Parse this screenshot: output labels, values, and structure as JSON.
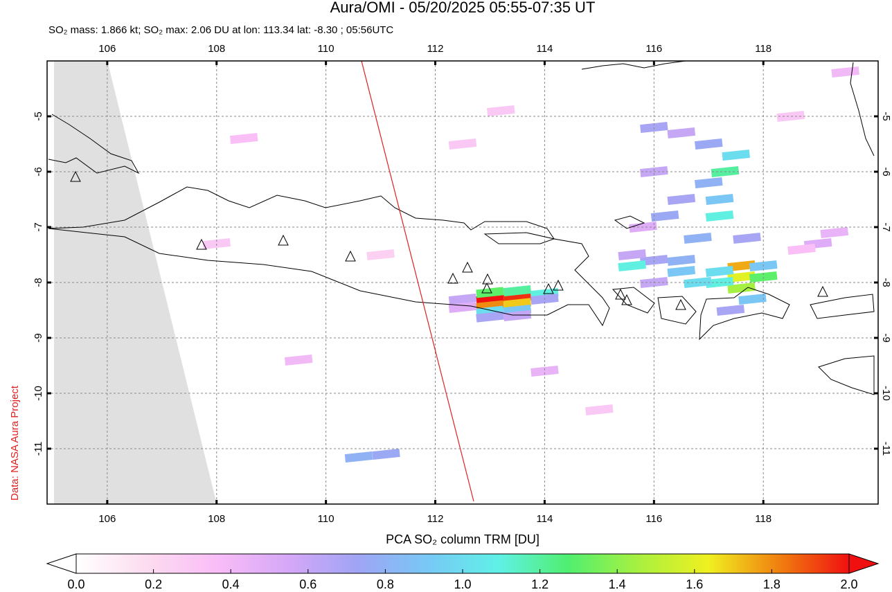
{
  "chart_data": {
    "type": "map",
    "title": "Aura/OMI - 05/20/2025 05:55-07:35 UT",
    "subtitle": "SO₂ mass: 1.866 kt; SO₂ max: 2.06 DU at lon: 113.34 lat: -8.30 ; 05:56UTC",
    "credit": "Data: NASA Aura Project",
    "xlim": [
      104.9,
      120.1
    ],
    "ylim": [
      -12,
      -4
    ],
    "xticks": [
      106,
      108,
      110,
      112,
      114,
      116,
      118
    ],
    "yticks": [
      -5,
      -6,
      -7,
      -8,
      -9,
      -10,
      -11
    ],
    "grid": true,
    "colorbar": {
      "label": "PCA SO₂ column TRM [DU]",
      "range": [
        0,
        2
      ],
      "ticks": [
        {
          "value": 0,
          "label": "0.0"
        },
        0.2,
        0.4,
        0.6,
        0.8,
        {
          "value": 1,
          "label": "1.0"
        },
        1.2,
        1.4,
        1.6,
        1.8,
        {
          "value": 2,
          "label": "2.0"
        }
      ],
      "colormap": [
        "#ffffff",
        "#fcdcf0",
        "#f9bdf7",
        "#d6a8f7",
        "#a0a4f5",
        "#78c8f5",
        "#60f0e8",
        "#50ef70",
        "#a8f040",
        "#f0f020",
        "#f08010",
        "#f01010"
      ]
    },
    "so2_pixels": {
      "lon": [
        113.0,
        113.5,
        113.0,
        113.5,
        113.0,
        113.5,
        113.0,
        113.5,
        112.5,
        112.5,
        114.0,
        114.0,
        113.0,
        113.5,
        117.6,
        117.6,
        117.6,
        117.2,
        117.2,
        118.0,
        118.0,
        117.8,
        117.4,
        116.5,
        116.5,
        116.0,
        115.6,
        115.6,
        116.0,
        116.8,
        117.2,
        117.2,
        117.3,
        117.5,
        117.0,
        116.5,
        116.0,
        116.5,
        117.0,
        116.0,
        116.2,
        116.8,
        117.7,
        115.8,
        110.6,
        111.1,
        108.5,
        112.5,
        109.5,
        114.0,
        119.0,
        119.3,
        118.7,
        108.0,
        111.0,
        113.2,
        115.0,
        118.5,
        119.5
      ],
      "lat": [
        -8.3,
        -8.27,
        -8.42,
        -8.38,
        -8.18,
        -8.15,
        -8.52,
        -8.5,
        -8.3,
        -8.45,
        -8.2,
        -8.3,
        -8.62,
        -8.6,
        -7.7,
        -7.9,
        -8.1,
        -7.8,
        -8.0,
        -7.7,
        -7.9,
        -8.3,
        -8.5,
        -7.8,
        -7.6,
        -7.6,
        -7.5,
        -7.7,
        -8.0,
        -8.0,
        -6.8,
        -6.5,
        -6.0,
        -5.7,
        -6.2,
        -6.5,
        -5.2,
        -5.3,
        -5.5,
        -6.0,
        -6.8,
        -7.2,
        -7.2,
        -7.0,
        -11.15,
        -11.1,
        -5.4,
        -5.5,
        -9.4,
        -9.6,
        -7.3,
        -7.1,
        -7.4,
        -7.3,
        -7.5,
        -4.9,
        -10.3,
        -5.0,
        -4.2
      ],
      "values": [
        2.06,
        1.95,
        1.8,
        1.7,
        1.3,
        1.2,
        1.0,
        0.9,
        0.6,
        0.5,
        1.1,
        0.7,
        0.7,
        0.6,
        1.75,
        1.6,
        1.45,
        1.0,
        1.1,
        0.9,
        1.3,
        0.9,
        0.7,
        0.9,
        0.8,
        0.7,
        0.6,
        1.1,
        0.6,
        1.0,
        1.1,
        0.9,
        1.2,
        1.0,
        0.8,
        0.7,
        0.7,
        0.6,
        0.75,
        0.6,
        0.75,
        0.8,
        0.7,
        0.5,
        0.8,
        0.75,
        0.35,
        0.3,
        0.4,
        0.45,
        0.5,
        0.45,
        0.35,
        0.3,
        0.25,
        0.3,
        0.3,
        0.3,
        0.4
      ]
    }
  }
}
